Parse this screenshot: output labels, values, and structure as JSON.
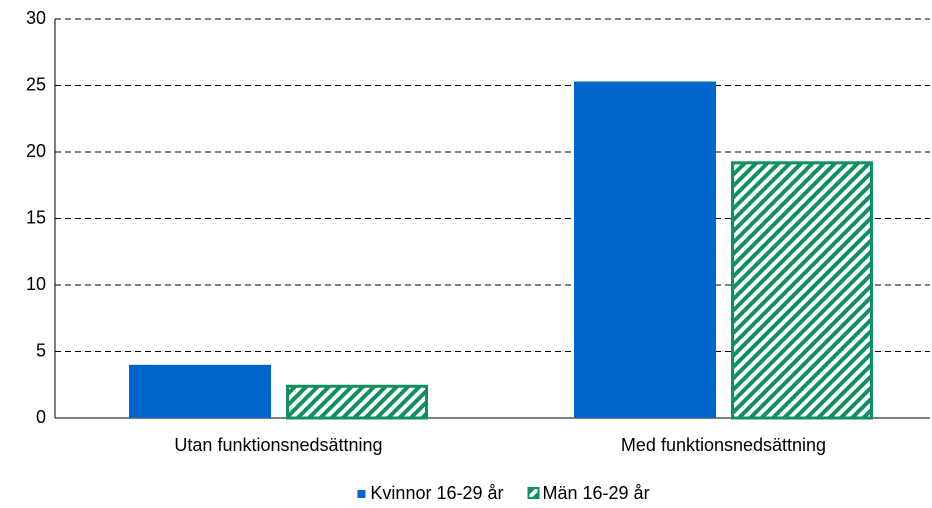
{
  "chart_data": {
    "type": "bar",
    "categories": [
      "Utan funktionsnedsättning",
      "Med funktionsnedsättning"
    ],
    "series": [
      {
        "name": "Kvinnor 16-29 år",
        "color": "#0066cc",
        "values": [
          4.0,
          25.3
        ]
      },
      {
        "name": "Män 16-29 år",
        "color": "#109060",
        "hatch": true,
        "values": [
          2.5,
          19.3
        ]
      }
    ],
    "ylim": [
      0,
      30
    ],
    "yticks": [
      0,
      5,
      10,
      15,
      20,
      25,
      30
    ],
    "grid": true,
    "legend": "bottom"
  }
}
